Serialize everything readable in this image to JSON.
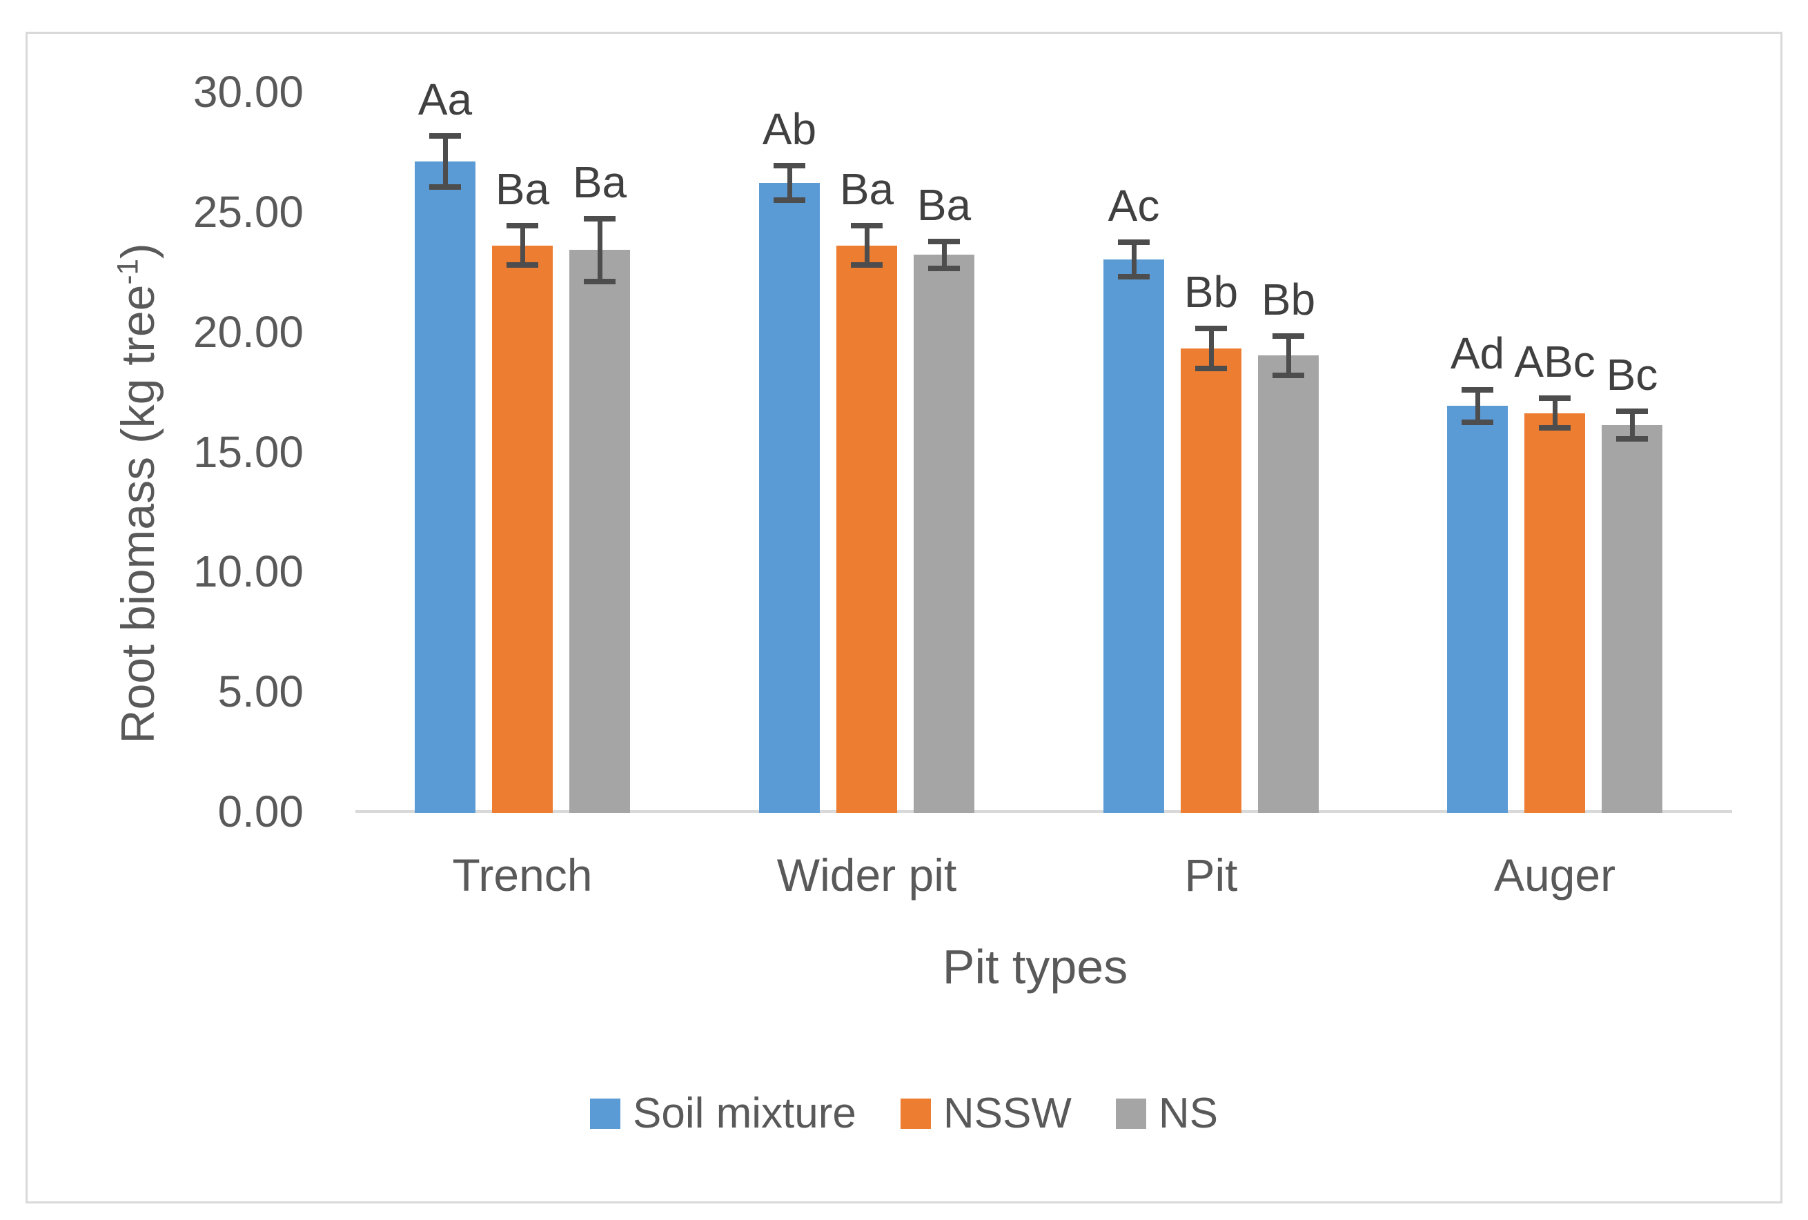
{
  "chart_data": {
    "type": "bar",
    "title": "",
    "categories": [
      "Trench",
      "Wider pit",
      "Pit",
      "Auger"
    ],
    "series": [
      {
        "name": "Soil mixture",
        "color": "#5B9BD5",
        "values": [
          27.1,
          26.2,
          23.0,
          16.9
        ],
        "errors": [
          1.1,
          0.75,
          0.75,
          0.7
        ],
        "sig_labels": [
          "Aa",
          "Ab",
          "Ac",
          "Ad"
        ]
      },
      {
        "name": "NSSW",
        "color": "#ED7D31",
        "values": [
          23.6,
          23.6,
          19.3,
          16.6
        ],
        "errors": [
          0.85,
          0.85,
          0.85,
          0.65
        ],
        "sig_labels": [
          "Ba",
          "Ba",
          "Bb",
          "ABc"
        ]
      },
      {
        "name": "NS",
        "color": "#A5A5A5",
        "values": [
          23.4,
          23.2,
          19.0,
          16.1
        ],
        "errors": [
          1.35,
          0.6,
          0.85,
          0.6
        ],
        "sig_labels": [
          "Ba",
          "Ba",
          "Bb",
          "Bc"
        ]
      }
    ],
    "xlabel": "Pit types",
    "ylabel": "Root biomass (kg tree⁻¹)",
    "ylabel_rich": {
      "prefix": "Root biomass (kg tree",
      "sup": "-1",
      "suffix": ")"
    },
    "ylim": [
      0,
      30
    ],
    "ytick_step": 5,
    "ytick_labels": [
      "0.00",
      "5.00",
      "10.00",
      "15.00",
      "20.00",
      "25.00",
      "30.00"
    ],
    "grid": false,
    "legend_position": "bottom",
    "axis_line_color": "#D9D9D9",
    "error_bar_color": "#4D4D4D",
    "text_color": "#595959",
    "annotation_color": "#404040",
    "border_color": "#D9D9D9"
  }
}
